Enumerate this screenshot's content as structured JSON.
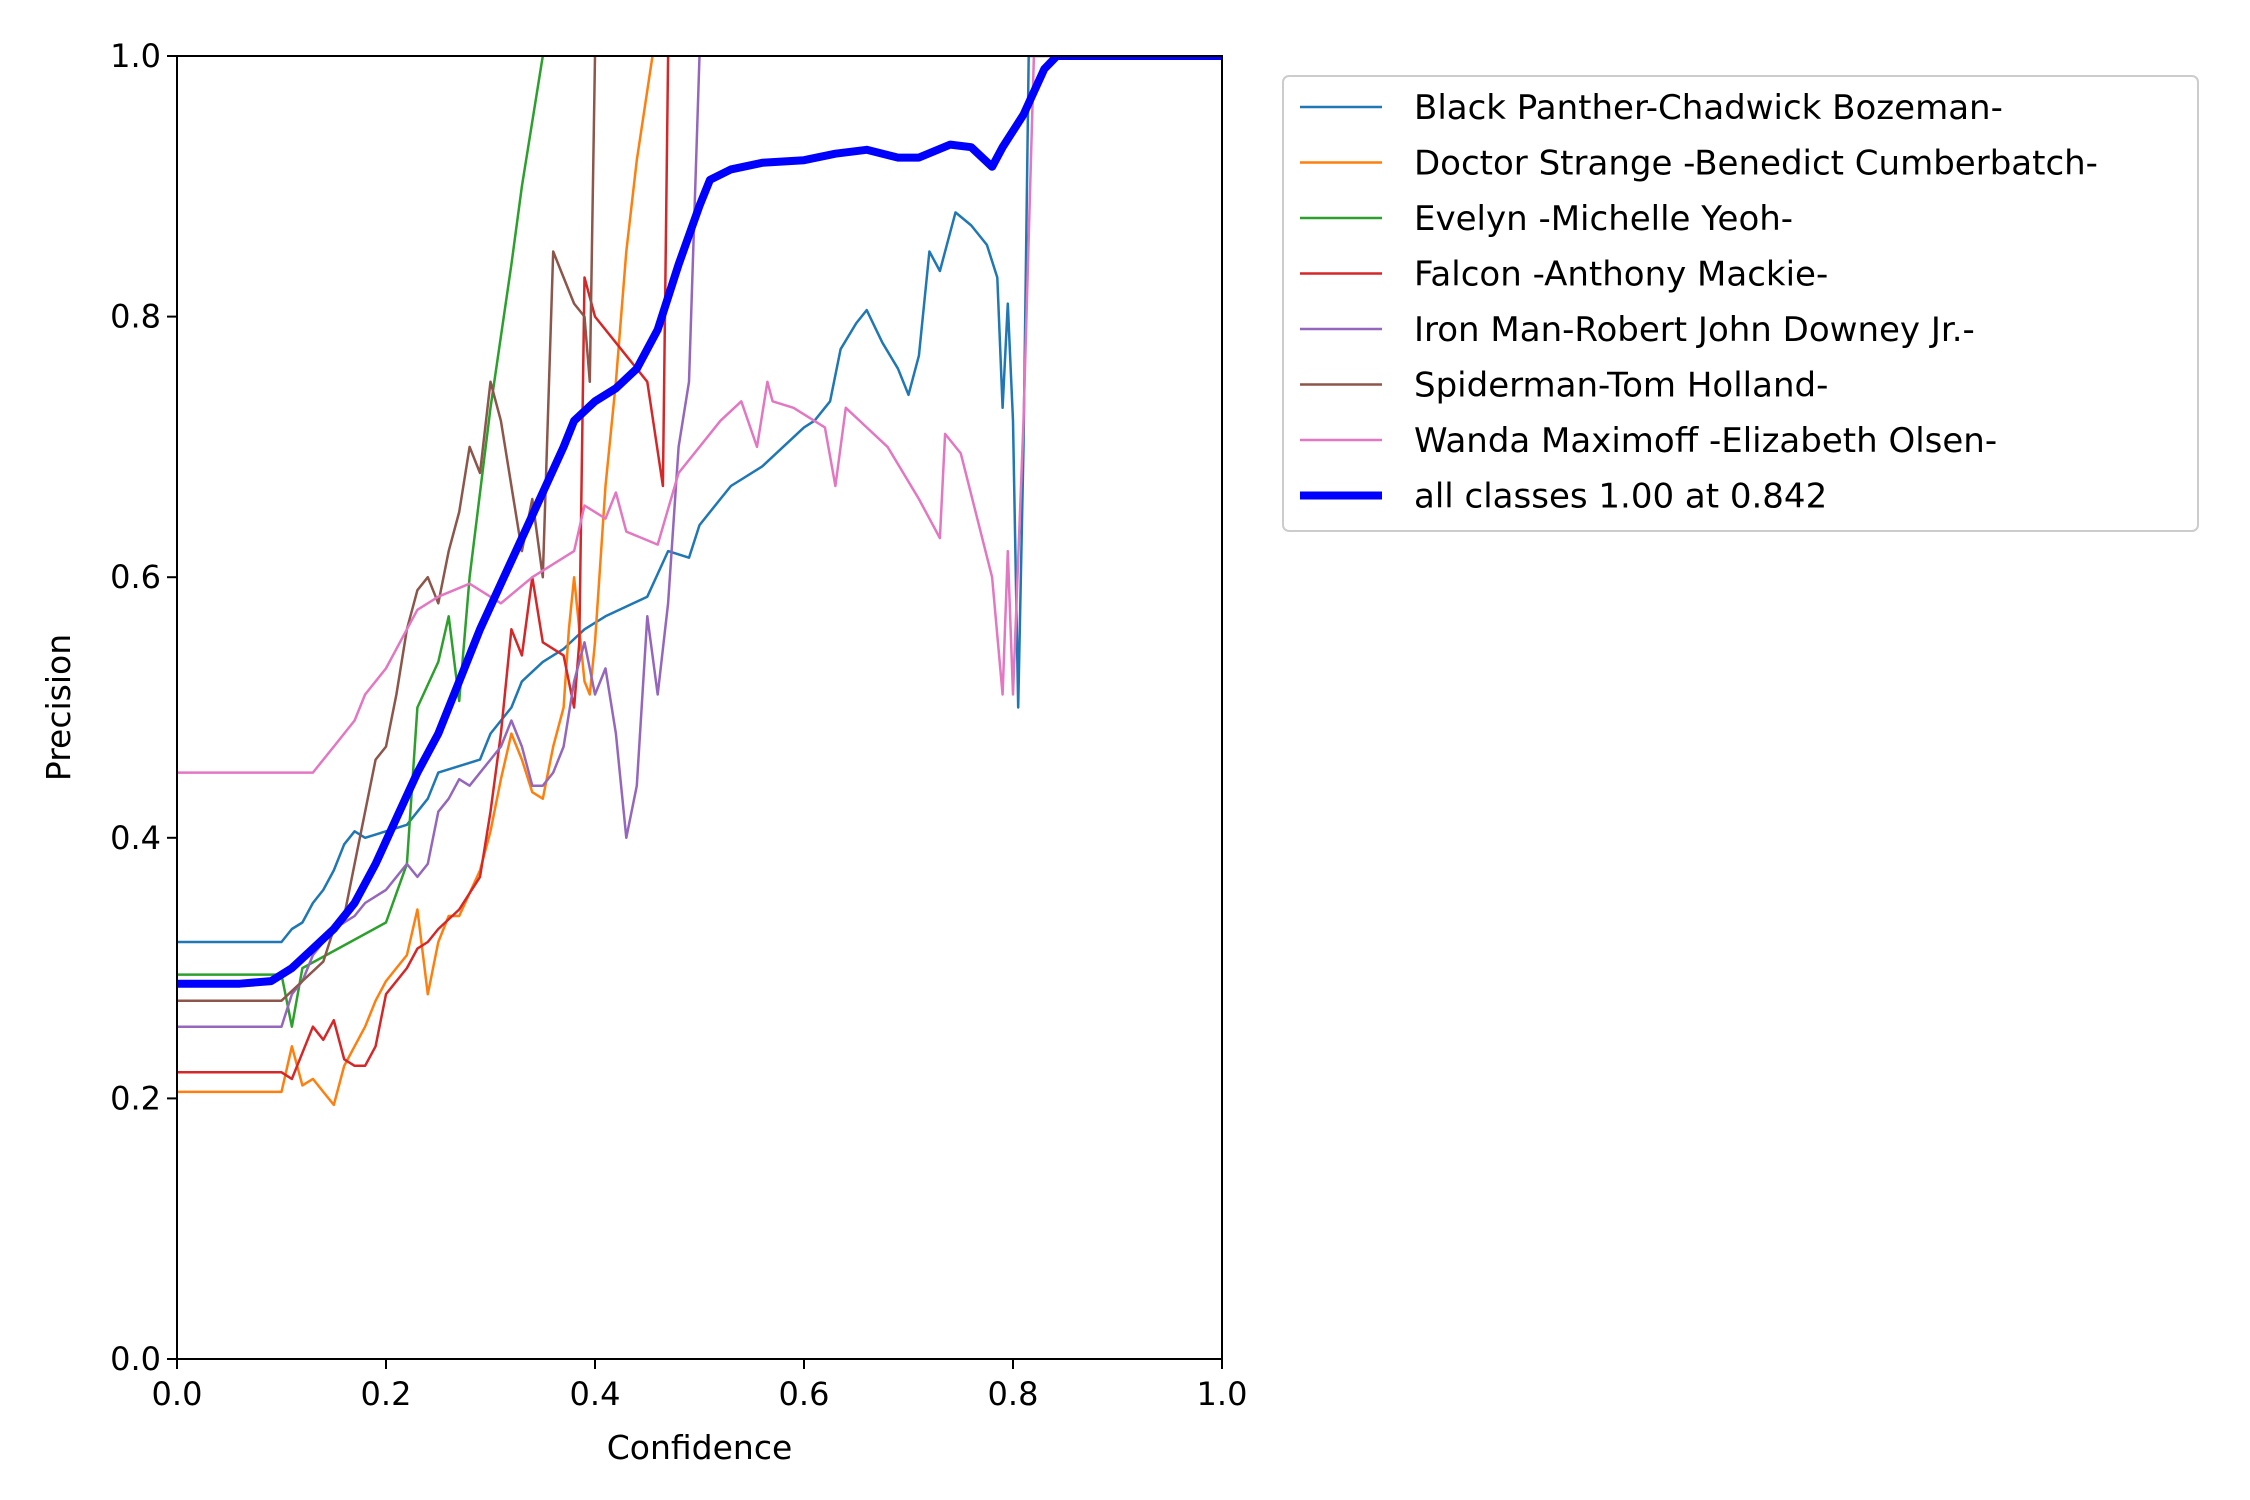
{
  "chart_data": {
    "type": "line",
    "title": "",
    "xlabel": "Confidence",
    "ylabel": "Precision",
    "xlim": [
      0,
      1
    ],
    "ylim": [
      0,
      1
    ],
    "xticks": [
      "0.0",
      "0.2",
      "0.4",
      "0.6",
      "0.8",
      "1.0"
    ],
    "yticks": [
      "0.0",
      "0.2",
      "0.4",
      "0.6",
      "0.8",
      "1.0"
    ],
    "grid": false,
    "legend_position": "outside-top-right",
    "series": [
      {
        "name": "Black Panther-Chadwick Bozeman-",
        "color": "#1f77b4",
        "width": "thin",
        "points": [
          [
            0,
            0.32
          ],
          [
            0.1,
            0.32
          ],
          [
            0.11,
            0.33
          ],
          [
            0.12,
            0.335
          ],
          [
            0.13,
            0.35
          ],
          [
            0.14,
            0.36
          ],
          [
            0.15,
            0.375
          ],
          [
            0.16,
            0.395
          ],
          [
            0.17,
            0.405
          ],
          [
            0.18,
            0.4
          ],
          [
            0.2,
            0.405
          ],
          [
            0.22,
            0.41
          ],
          [
            0.24,
            0.43
          ],
          [
            0.25,
            0.45
          ],
          [
            0.27,
            0.455
          ],
          [
            0.29,
            0.46
          ],
          [
            0.3,
            0.48
          ],
          [
            0.32,
            0.5
          ],
          [
            0.33,
            0.52
          ],
          [
            0.35,
            0.535
          ],
          [
            0.37,
            0.545
          ],
          [
            0.39,
            0.56
          ],
          [
            0.41,
            0.57
          ],
          [
            0.45,
            0.585
          ],
          [
            0.47,
            0.62
          ],
          [
            0.49,
            0.615
          ],
          [
            0.5,
            0.64
          ],
          [
            0.52,
            0.66
          ],
          [
            0.53,
            0.67
          ],
          [
            0.56,
            0.685
          ],
          [
            0.58,
            0.7
          ],
          [
            0.6,
            0.715
          ],
          [
            0.61,
            0.72
          ],
          [
            0.625,
            0.735
          ],
          [
            0.635,
            0.775
          ],
          [
            0.65,
            0.795
          ],
          [
            0.66,
            0.805
          ],
          [
            0.675,
            0.78
          ],
          [
            0.69,
            0.76
          ],
          [
            0.7,
            0.74
          ],
          [
            0.71,
            0.77
          ],
          [
            0.72,
            0.85
          ],
          [
            0.73,
            0.835
          ],
          [
            0.745,
            0.88
          ],
          [
            0.76,
            0.87
          ],
          [
            0.775,
            0.855
          ],
          [
            0.785,
            0.83
          ],
          [
            0.79,
            0.73
          ],
          [
            0.795,
            0.81
          ],
          [
            0.8,
            0.72
          ],
          [
            0.805,
            0.5
          ],
          [
            0.81,
            0.7
          ],
          [
            0.815,
            1.0
          ],
          [
            1.0,
            1.0
          ]
        ]
      },
      {
        "name": "Doctor Strange -Benedict Cumberbatch-",
        "color": "#ff7f0e",
        "width": "thin",
        "points": [
          [
            0,
            0.205
          ],
          [
            0.1,
            0.205
          ],
          [
            0.11,
            0.24
          ],
          [
            0.12,
            0.21
          ],
          [
            0.13,
            0.215
          ],
          [
            0.14,
            0.205
          ],
          [
            0.15,
            0.195
          ],
          [
            0.16,
            0.225
          ],
          [
            0.17,
            0.24
          ],
          [
            0.18,
            0.255
          ],
          [
            0.19,
            0.275
          ],
          [
            0.2,
            0.29
          ],
          [
            0.21,
            0.3
          ],
          [
            0.22,
            0.31
          ],
          [
            0.23,
            0.345
          ],
          [
            0.24,
            0.28
          ],
          [
            0.25,
            0.32
          ],
          [
            0.26,
            0.34
          ],
          [
            0.27,
            0.34
          ],
          [
            0.29,
            0.375
          ],
          [
            0.3,
            0.405
          ],
          [
            0.31,
            0.445
          ],
          [
            0.32,
            0.48
          ],
          [
            0.33,
            0.46
          ],
          [
            0.34,
            0.435
          ],
          [
            0.35,
            0.43
          ],
          [
            0.36,
            0.47
          ],
          [
            0.37,
            0.5
          ],
          [
            0.375,
            0.56
          ],
          [
            0.38,
            0.6
          ],
          [
            0.39,
            0.52
          ],
          [
            0.395,
            0.51
          ],
          [
            0.4,
            0.55
          ],
          [
            0.41,
            0.67
          ],
          [
            0.42,
            0.75
          ],
          [
            0.43,
            0.85
          ],
          [
            0.44,
            0.92
          ],
          [
            0.455,
            1.0
          ]
        ]
      },
      {
        "name": "Evelyn -Michelle Yeoh-",
        "color": "#2ca02c",
        "width": "thin",
        "points": [
          [
            0,
            0.295
          ],
          [
            0.1,
            0.295
          ],
          [
            0.11,
            0.255
          ],
          [
            0.12,
            0.3
          ],
          [
            0.2,
            0.335
          ],
          [
            0.22,
            0.38
          ],
          [
            0.23,
            0.5
          ],
          [
            0.25,
            0.535
          ],
          [
            0.26,
            0.57
          ],
          [
            0.27,
            0.505
          ],
          [
            0.28,
            0.6
          ],
          [
            0.3,
            0.73
          ],
          [
            0.32,
            0.84
          ],
          [
            0.33,
            0.9
          ],
          [
            0.35,
            1.0
          ]
        ]
      },
      {
        "name": "Falcon -Anthony Mackie-",
        "color": "#d62728",
        "width": "thin",
        "points": [
          [
            0,
            0.22
          ],
          [
            0.1,
            0.22
          ],
          [
            0.11,
            0.215
          ],
          [
            0.12,
            0.235
          ],
          [
            0.13,
            0.255
          ],
          [
            0.14,
            0.245
          ],
          [
            0.15,
            0.26
          ],
          [
            0.16,
            0.23
          ],
          [
            0.17,
            0.225
          ],
          [
            0.18,
            0.225
          ],
          [
            0.19,
            0.24
          ],
          [
            0.2,
            0.28
          ],
          [
            0.22,
            0.3
          ],
          [
            0.23,
            0.315
          ],
          [
            0.24,
            0.32
          ],
          [
            0.25,
            0.33
          ],
          [
            0.27,
            0.345
          ],
          [
            0.29,
            0.37
          ],
          [
            0.3,
            0.42
          ],
          [
            0.31,
            0.48
          ],
          [
            0.32,
            0.56
          ],
          [
            0.33,
            0.54
          ],
          [
            0.34,
            0.6
          ],
          [
            0.35,
            0.55
          ],
          [
            0.37,
            0.54
          ],
          [
            0.38,
            0.5
          ],
          [
            0.385,
            0.55
          ],
          [
            0.39,
            0.83
          ],
          [
            0.4,
            0.8
          ],
          [
            0.43,
            0.77
          ],
          [
            0.44,
            0.76
          ],
          [
            0.45,
            0.75
          ],
          [
            0.465,
            0.67
          ],
          [
            0.47,
            1.0
          ]
        ]
      },
      {
        "name": "Iron Man-Robert John Downey Jr.-",
        "color": "#9467bd",
        "width": "thin",
        "points": [
          [
            0,
            0.255
          ],
          [
            0.1,
            0.255
          ],
          [
            0.11,
            0.28
          ],
          [
            0.12,
            0.29
          ],
          [
            0.13,
            0.31
          ],
          [
            0.15,
            0.33
          ],
          [
            0.17,
            0.34
          ],
          [
            0.18,
            0.35
          ],
          [
            0.2,
            0.36
          ],
          [
            0.22,
            0.38
          ],
          [
            0.23,
            0.37
          ],
          [
            0.24,
            0.38
          ],
          [
            0.25,
            0.42
          ],
          [
            0.26,
            0.43
          ],
          [
            0.27,
            0.445
          ],
          [
            0.28,
            0.44
          ],
          [
            0.3,
            0.46
          ],
          [
            0.31,
            0.47
          ],
          [
            0.32,
            0.49
          ],
          [
            0.33,
            0.47
          ],
          [
            0.34,
            0.44
          ],
          [
            0.35,
            0.44
          ],
          [
            0.36,
            0.45
          ],
          [
            0.37,
            0.47
          ],
          [
            0.38,
            0.52
          ],
          [
            0.39,
            0.55
          ],
          [
            0.4,
            0.51
          ],
          [
            0.41,
            0.53
          ],
          [
            0.42,
            0.48
          ],
          [
            0.43,
            0.4
          ],
          [
            0.44,
            0.44
          ],
          [
            0.45,
            0.57
          ],
          [
            0.46,
            0.51
          ],
          [
            0.47,
            0.58
          ],
          [
            0.48,
            0.7
          ],
          [
            0.49,
            0.75
          ],
          [
            0.5,
            1.0
          ]
        ]
      },
      {
        "name": "Spiderman-Tom Holland-",
        "color": "#8c564b",
        "width": "thin",
        "points": [
          [
            0,
            0.275
          ],
          [
            0.1,
            0.275
          ],
          [
            0.12,
            0.29
          ],
          [
            0.14,
            0.305
          ],
          [
            0.15,
            0.33
          ],
          [
            0.16,
            0.34
          ],
          [
            0.17,
            0.38
          ],
          [
            0.18,
            0.42
          ],
          [
            0.19,
            0.46
          ],
          [
            0.2,
            0.47
          ],
          [
            0.21,
            0.51
          ],
          [
            0.22,
            0.56
          ],
          [
            0.23,
            0.59
          ],
          [
            0.24,
            0.6
          ],
          [
            0.25,
            0.58
          ],
          [
            0.26,
            0.62
          ],
          [
            0.27,
            0.65
          ],
          [
            0.28,
            0.7
          ],
          [
            0.29,
            0.68
          ],
          [
            0.3,
            0.75
          ],
          [
            0.31,
            0.72
          ],
          [
            0.32,
            0.67
          ],
          [
            0.33,
            0.62
          ],
          [
            0.34,
            0.66
          ],
          [
            0.35,
            0.6
          ],
          [
            0.36,
            0.85
          ],
          [
            0.37,
            0.83
          ],
          [
            0.38,
            0.81
          ],
          [
            0.39,
            0.8
          ],
          [
            0.395,
            0.75
          ],
          [
            0.4,
            1.0
          ]
        ]
      },
      {
        "name": "Wanda Maximoff -Elizabeth Olsen-",
        "color": "#e377c2",
        "width": "thin",
        "points": [
          [
            0,
            0.45
          ],
          [
            0.13,
            0.45
          ],
          [
            0.15,
            0.47
          ],
          [
            0.17,
            0.49
          ],
          [
            0.18,
            0.51
          ],
          [
            0.2,
            0.53
          ],
          [
            0.22,
            0.56
          ],
          [
            0.23,
            0.575
          ],
          [
            0.25,
            0.585
          ],
          [
            0.28,
            0.595
          ],
          [
            0.31,
            0.58
          ],
          [
            0.34,
            0.6
          ],
          [
            0.38,
            0.62
          ],
          [
            0.39,
            0.655
          ],
          [
            0.41,
            0.645
          ],
          [
            0.42,
            0.665
          ],
          [
            0.43,
            0.635
          ],
          [
            0.46,
            0.625
          ],
          [
            0.48,
            0.68
          ],
          [
            0.52,
            0.72
          ],
          [
            0.54,
            0.735
          ],
          [
            0.555,
            0.7
          ],
          [
            0.565,
            0.75
          ],
          [
            0.57,
            0.735
          ],
          [
            0.59,
            0.73
          ],
          [
            0.62,
            0.715
          ],
          [
            0.63,
            0.67
          ],
          [
            0.64,
            0.73
          ],
          [
            0.66,
            0.715
          ],
          [
            0.68,
            0.7
          ],
          [
            0.71,
            0.66
          ],
          [
            0.73,
            0.63
          ],
          [
            0.735,
            0.71
          ],
          [
            0.75,
            0.695
          ],
          [
            0.78,
            0.6
          ],
          [
            0.79,
            0.51
          ],
          [
            0.795,
            0.62
          ],
          [
            0.8,
            0.51
          ],
          [
            0.81,
            0.72
          ],
          [
            0.82,
            1.0
          ],
          [
            1.0,
            1.0
          ]
        ]
      },
      {
        "name": "all classes 1.00 at 0.842",
        "color": "#0000ff",
        "width": "thick",
        "points": [
          [
            0,
            0.288
          ],
          [
            0.06,
            0.288
          ],
          [
            0.09,
            0.29
          ],
          [
            0.11,
            0.3
          ],
          [
            0.13,
            0.315
          ],
          [
            0.15,
            0.33
          ],
          [
            0.17,
            0.35
          ],
          [
            0.19,
            0.38
          ],
          [
            0.21,
            0.415
          ],
          [
            0.23,
            0.45
          ],
          [
            0.25,
            0.48
          ],
          [
            0.27,
            0.52
          ],
          [
            0.29,
            0.56
          ],
          [
            0.31,
            0.595
          ],
          [
            0.33,
            0.63
          ],
          [
            0.35,
            0.665
          ],
          [
            0.37,
            0.7
          ],
          [
            0.38,
            0.72
          ],
          [
            0.4,
            0.735
          ],
          [
            0.42,
            0.745
          ],
          [
            0.44,
            0.76
          ],
          [
            0.46,
            0.79
          ],
          [
            0.48,
            0.84
          ],
          [
            0.5,
            0.885
          ],
          [
            0.51,
            0.905
          ],
          [
            0.53,
            0.913
          ],
          [
            0.56,
            0.918
          ],
          [
            0.6,
            0.92
          ],
          [
            0.63,
            0.925
          ],
          [
            0.66,
            0.928
          ],
          [
            0.69,
            0.922
          ],
          [
            0.71,
            0.922
          ],
          [
            0.74,
            0.932
          ],
          [
            0.76,
            0.93
          ],
          [
            0.78,
            0.915
          ],
          [
            0.79,
            0.93
          ],
          [
            0.81,
            0.955
          ],
          [
            0.83,
            0.99
          ],
          [
            0.842,
            1.0
          ],
          [
            1.0,
            1.0
          ]
        ]
      }
    ]
  }
}
